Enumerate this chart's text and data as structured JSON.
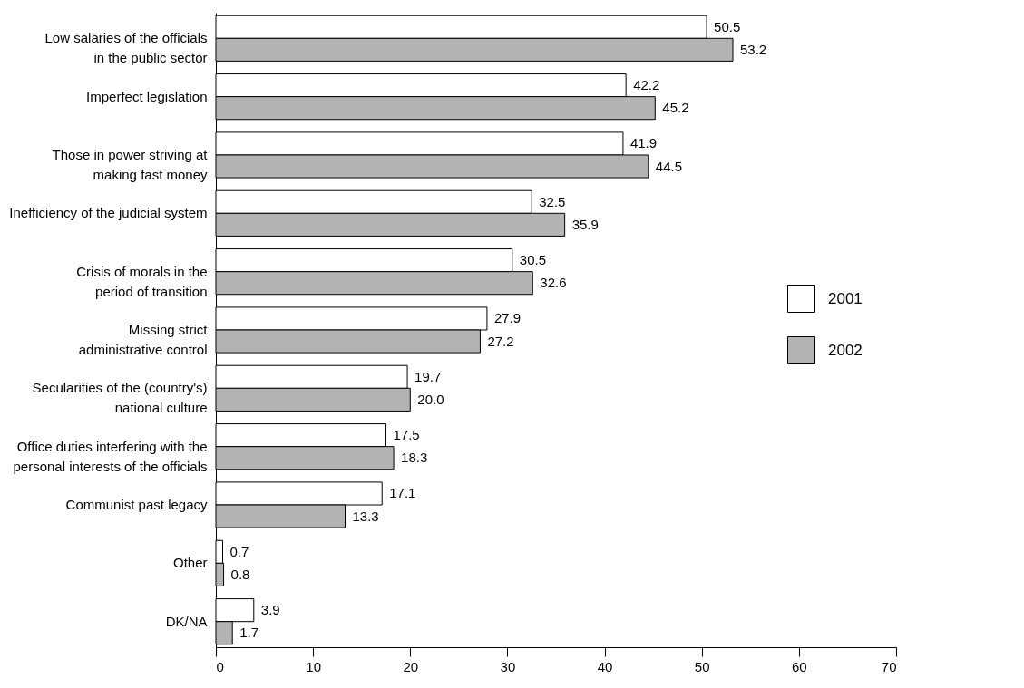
{
  "chart_data": {
    "type": "bar",
    "orientation": "horizontal",
    "categories": [
      "Low salaries of the officials\nin the public sector",
      "Imperfect legislation",
      "Those in power striving at\nmaking fast money",
      "Inefficiency of the judicial system",
      "Crisis of morals in the\nperiod of transition",
      "Missing strict\nadministrative control",
      "Secularities of the (country's)\nnational culture",
      "Office duties interfering with the\npersonal interests of the officials",
      "Communist past legacy",
      "Other",
      "DK/NA"
    ],
    "series": [
      {
        "name": "2001",
        "color": "#ffffff",
        "values": [
          50.5,
          42.2,
          41.9,
          32.5,
          30.5,
          27.9,
          19.7,
          17.5,
          17.1,
          0.7,
          3.9
        ],
        "value_labels": [
          "50.5",
          "42.2",
          "41.9",
          "32.5",
          "30.5",
          "27.9",
          "19.7",
          "17.5",
          "17.1",
          "0.7",
          "3.9"
        ]
      },
      {
        "name": "2002",
        "color": "#b3b3b3",
        "values": [
          53.2,
          45.2,
          44.5,
          35.9,
          32.6,
          27.2,
          20.0,
          18.3,
          13.3,
          0.8,
          1.7
        ],
        "value_labels": [
          "53.2",
          "45.2",
          "44.5",
          "35.9",
          "32.6",
          "27.2",
          "20.0",
          "18.3",
          "13.3",
          "0.8",
          "1.7"
        ]
      }
    ],
    "xlim": [
      0,
      70
    ],
    "xticks": [
      0,
      10,
      20,
      30,
      40,
      50,
      60,
      70
    ],
    "legend": "right"
  }
}
